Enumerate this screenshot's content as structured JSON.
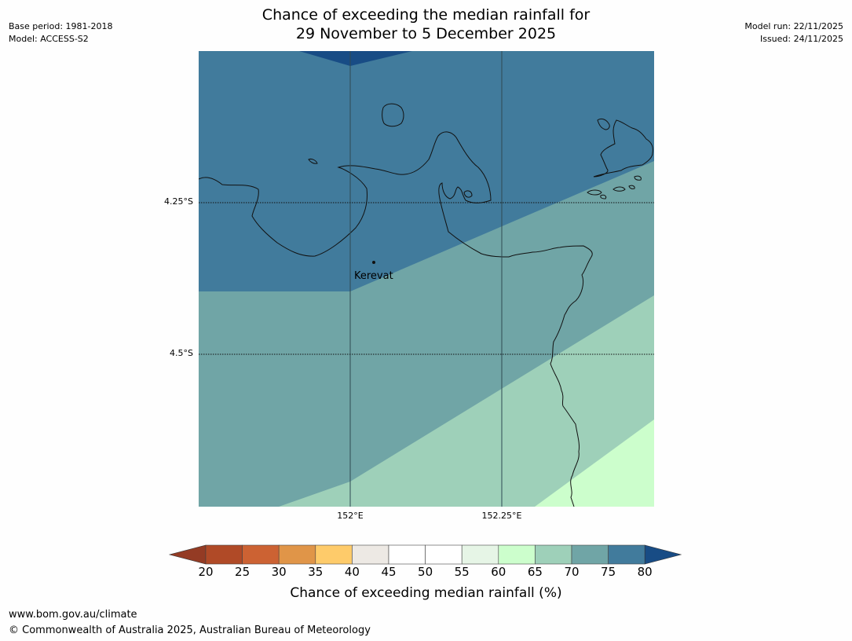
{
  "header": {
    "base_period": "Base period: 1981-2018",
    "model": "Model: ACCESS-S2",
    "model_run": "Model run: 22/11/2025",
    "issued": "Issued: 24/11/2025",
    "title_line1": "Chance of exceeding the median rainfall for",
    "title_line2": "29 November to 5 December 2025"
  },
  "map": {
    "place_name": "Kerevat",
    "lat_labels": [
      "4.25°S",
      "4.5°S"
    ],
    "lon_labels": [
      "152°E",
      "152.25°E"
    ]
  },
  "legend": {
    "ticks": [
      "20",
      "25",
      "30",
      "35",
      "40",
      "45",
      "50",
      "55",
      "60",
      "65",
      "70",
      "75",
      "80"
    ],
    "colors": [
      "#b04a27",
      "#cc6233",
      "#e09548",
      "#fecb6a",
      "#ede9e4",
      "#ffffff",
      "#ffffff",
      "#e6f5e6",
      "#ccfecc",
      "#9ed0b9",
      "#70a5a6",
      "#417b9c"
    ],
    "under_color": "#943b24",
    "over_color": "#184c85",
    "title": "Chance of exceeding median rainfall (%)"
  },
  "footer": {
    "url": "www.bom.gov.au/climate",
    "copyright": "© Commonwealth of Australia 2025, Australian Bureau of Meteorology"
  }
}
